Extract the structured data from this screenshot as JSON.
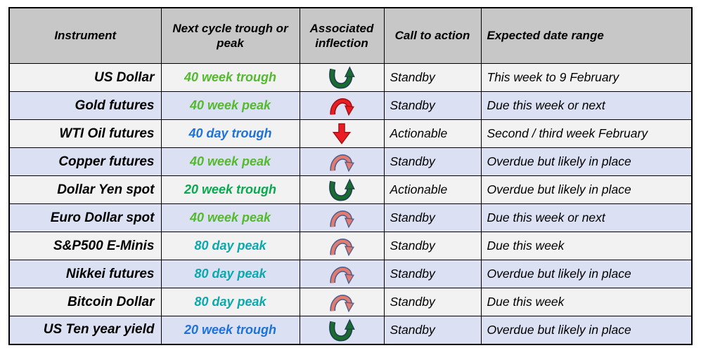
{
  "chart_data": {
    "type": "table",
    "columns": [
      "Instrument",
      "Next cycle trough or peak",
      "Associated inflection",
      "Call to action",
      "Expected date range"
    ],
    "rows": [
      {
        "instrument": "US Dollar",
        "cycle": "40 week trough",
        "cycle_color": "#54b92f",
        "icon": "curved-up-arrow",
        "icon_variant": "green",
        "call": "Standby",
        "range": "This week to 9 February"
      },
      {
        "instrument": "Gold futures",
        "cycle": "40 week peak",
        "cycle_color": "#54b92f",
        "icon": "arch-arrow",
        "icon_variant": "red",
        "call": "Standby",
        "range": "Due this week or next"
      },
      {
        "instrument": "WTI Oil futures",
        "cycle": "40 day trough",
        "cycle_color": "#1e72d8",
        "icon": "down-arrow",
        "icon_variant": "red",
        "call": "Actionable",
        "range": "Second / third week February"
      },
      {
        "instrument": "Copper futures",
        "cycle": "40 week peak",
        "cycle_color": "#54b92f",
        "icon": "arch-arrow",
        "icon_variant": "salmon",
        "call": "Standby",
        "range": "Overdue but likely in place"
      },
      {
        "instrument": "Dollar Yen spot",
        "cycle": "20 week trough",
        "cycle_color": "#0aa84f",
        "icon": "curved-up-arrow",
        "icon_variant": "green",
        "call": "Actionable",
        "range": "Overdue but likely in place"
      },
      {
        "instrument": "Euro Dollar spot",
        "cycle": "40 week peak",
        "cycle_color": "#54b92f",
        "icon": "arch-arrow",
        "icon_variant": "salmon",
        "call": "Standby",
        "range": "Due this week or next"
      },
      {
        "instrument": "S&P500 E-Minis",
        "cycle": "80 day peak",
        "cycle_color": "#0ba8ad",
        "icon": "arch-arrow",
        "icon_variant": "salmon",
        "call": "Standby",
        "range": "Due this week"
      },
      {
        "instrument": "Nikkei futures",
        "cycle": "80 day peak",
        "cycle_color": "#0ba8ad",
        "icon": "arch-arrow",
        "icon_variant": "salmon",
        "call": "Standby",
        "range": "Overdue but likely in place"
      },
      {
        "instrument": "Bitcoin Dollar",
        "cycle": "80 day peak",
        "cycle_color": "#0ba8ad",
        "icon": "arch-arrow",
        "icon_variant": "salmon",
        "call": "Standby",
        "range": "Due this week"
      },
      {
        "instrument": "US Ten year yield",
        "cycle": "20 week trough",
        "cycle_color": "#1e72d8",
        "icon": "curved-up-arrow",
        "icon_variant": "green",
        "call": "Standby",
        "range": "Overdue but likely in place"
      }
    ]
  },
  "arrow_colors": {
    "green": {
      "fill": "#1a6b2e",
      "outline": "#1d4050"
    },
    "red": {
      "fill": "#ea1d25",
      "outline": "#9c1313"
    },
    "salmon": {
      "fill": "#e37b72",
      "outline": "#50608c"
    }
  },
  "style_colors": {
    "header_bg": "#c7c7c7",
    "row_stripe_gray": "#f2f2f2",
    "row_stripe_blue": "#dbe0f2",
    "border": "#000000"
  }
}
